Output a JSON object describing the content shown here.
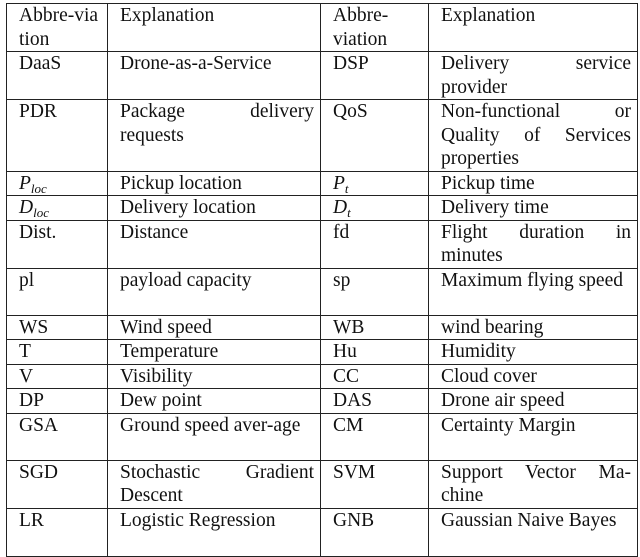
{
  "header": {
    "abbr1": "Abbre-viation",
    "expl1": "Explanation",
    "abbr2": "Abbre-viation",
    "expl2": "Explanation"
  },
  "rows": [
    {
      "a1": {
        "text": "DaaS"
      },
      "e1": "Drone-as-a-Service",
      "a2": {
        "text": "DSP"
      },
      "e2": "Delivery service provider"
    },
    {
      "a1": {
        "text": "PDR"
      },
      "e1": "Package delivery requests",
      "a2": {
        "text": "QoS"
      },
      "e2": "Non-functional or Quality of Services properties"
    },
    {
      "a1": {
        "text": "P",
        "sub": "loc",
        "math": true
      },
      "e1": "Pickup location",
      "a2": {
        "text": "P",
        "sub": "t",
        "math": true
      },
      "e2": "Pickup time"
    },
    {
      "a1": {
        "text": "D",
        "sub": "loc",
        "math": true
      },
      "e1": "Delivery location",
      "a2": {
        "text": "D",
        "sub": "t",
        "math": true
      },
      "e2": "Delivery time"
    },
    {
      "a1": {
        "text": "Dist."
      },
      "e1": "Distance",
      "a2": {
        "text": "fd"
      },
      "e2": "Flight duration in minutes"
    },
    {
      "a1": {
        "text": "pl"
      },
      "e1": "payload capacity",
      "a2": {
        "text": "sp"
      },
      "e2": "Maximum flying speed"
    },
    {
      "a1": {
        "text": "WS"
      },
      "e1": "Wind speed",
      "a2": {
        "text": "WB"
      },
      "e2": "wind bearing"
    },
    {
      "a1": {
        "text": "T"
      },
      "e1": "Temperature",
      "a2": {
        "text": "Hu"
      },
      "e2": "Humidity"
    },
    {
      "a1": {
        "text": "V"
      },
      "e1": "Visibility",
      "a2": {
        "text": "CC"
      },
      "e2": "Cloud cover"
    },
    {
      "a1": {
        "text": "DP"
      },
      "e1": "Dew point",
      "a2": {
        "text": "DAS"
      },
      "e2": "Drone air speed"
    },
    {
      "a1": {
        "text": "GSA"
      },
      "e1": "Ground speed aver-age",
      "a2": {
        "text": "CM"
      },
      "e2": "Certainty Margin"
    },
    {
      "a1": {
        "text": "SGD"
      },
      "e1": "Stochastic Gradient Descent",
      "a2": {
        "text": "SVM"
      },
      "e2": "Support Vector Ma-chine"
    },
    {
      "a1": {
        "text": "LR"
      },
      "e1": "Logistic Regression",
      "a2": {
        "text": "GNB"
      },
      "e2": "Gaussian Naive Bayes"
    }
  ]
}
